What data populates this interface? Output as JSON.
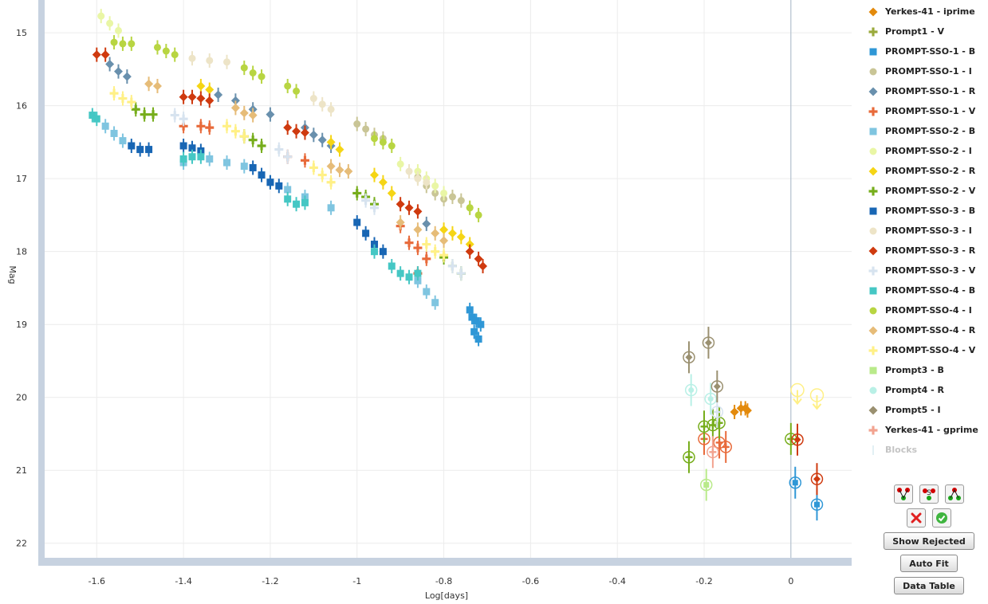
{
  "chart_data": {
    "type": "scatter",
    "xlabel": "Log[days]",
    "ylabel": "Mag",
    "xlim": [
      -1.72,
      0.14
    ],
    "ylim": [
      22.2,
      14.55
    ],
    "y_inverted": true,
    "x_ticks": [
      "-1.6",
      "-1.4",
      "-1.2",
      "-1",
      "-0.8",
      "-0.6",
      "-0.4",
      "-0.2",
      "0"
    ],
    "y_ticks": [
      "15",
      "16",
      "17",
      "18",
      "19",
      "20",
      "21",
      "22"
    ],
    "vertical_line_x": 0,
    "series": [
      {
        "name": "Yerkes-41 - iprime",
        "color": "#e38a0c",
        "marker": "diamond",
        "points": [
          [
            -0.13,
            20.2
          ],
          [
            -0.115,
            20.15
          ],
          [
            -0.105,
            20.15
          ],
          [
            -0.1,
            20.18
          ]
        ],
        "circled": true
      },
      {
        "name": "Prompt1 - V",
        "color": "#9aaa3c",
        "marker": "plus",
        "points": []
      },
      {
        "name": "PROMPT-SSO-1 - B",
        "color": "#2f97d6",
        "marker": "square",
        "points": [
          [
            -0.74,
            18.8
          ],
          [
            -0.735,
            18.9
          ],
          [
            -0.73,
            19.1
          ],
          [
            -0.725,
            18.95
          ],
          [
            -0.72,
            19.2
          ],
          [
            -0.715,
            19.0
          ]
        ],
        "circled_points": [
          [
            0.01,
            21.17
          ],
          [
            0.06,
            21.47
          ]
        ]
      },
      {
        "name": "PROMPT-SSO-1 - I",
        "color": "#c9c596",
        "marker": "circle",
        "points": [
          [
            -1.0,
            16.25
          ],
          [
            -0.98,
            16.32
          ],
          [
            -0.96,
            16.4
          ],
          [
            -0.94,
            16.45
          ],
          [
            -0.86,
            16.98
          ],
          [
            -0.84,
            17.1
          ],
          [
            -0.82,
            17.2
          ],
          [
            -0.8,
            17.28
          ],
          [
            -0.78,
            17.25
          ],
          [
            -0.76,
            17.3
          ],
          [
            -0.74,
            17.4
          ]
        ]
      },
      {
        "name": "PROMPT-SSO-1 - R",
        "color": "#6990ad",
        "marker": "diamond",
        "points": [
          [
            -1.57,
            15.43
          ],
          [
            -1.55,
            15.53
          ],
          [
            -1.53,
            15.6
          ],
          [
            -1.32,
            15.85
          ],
          [
            -1.28,
            15.93
          ],
          [
            -1.24,
            16.05
          ],
          [
            -1.2,
            16.12
          ],
          [
            -1.12,
            16.3
          ],
          [
            -1.1,
            16.4
          ],
          [
            -1.08,
            16.47
          ],
          [
            -1.06,
            16.55
          ],
          [
            -0.84,
            17.62
          ]
        ]
      },
      {
        "name": "PROMPT-SSO-1 - V",
        "color": "#e86a3a",
        "marker": "plus",
        "points": [
          [
            -1.4,
            16.28
          ],
          [
            -1.36,
            16.28
          ],
          [
            -1.34,
            16.3
          ],
          [
            -1.16,
            16.7
          ],
          [
            -1.12,
            16.75
          ],
          [
            -0.9,
            17.65
          ],
          [
            -0.88,
            17.88
          ],
          [
            -0.86,
            17.95
          ],
          [
            -0.84,
            18.1
          ],
          [
            -0.86,
            18.3
          ]
        ],
        "circled_points": [
          [
            -0.2,
            20.57
          ],
          [
            -0.165,
            20.62
          ],
          [
            -0.15,
            20.68
          ]
        ]
      },
      {
        "name": "PROMPT-SSO-2 - B",
        "color": "#7fc5e0",
        "marker": "square",
        "points": [
          [
            -1.58,
            16.28
          ],
          [
            -1.56,
            16.38
          ],
          [
            -1.54,
            16.48
          ],
          [
            -1.4,
            16.78
          ],
          [
            -1.34,
            16.73
          ],
          [
            -1.3,
            16.78
          ],
          [
            -1.26,
            16.83
          ],
          [
            -1.2,
            17.05
          ],
          [
            -1.16,
            17.15
          ],
          [
            -1.12,
            17.25
          ],
          [
            -1.06,
            17.4
          ],
          [
            -0.86,
            18.4
          ],
          [
            -0.84,
            18.55
          ],
          [
            -0.82,
            18.7
          ]
        ]
      },
      {
        "name": "PROMPT-SSO-2 - I",
        "color": "#e9f6a5",
        "marker": "circle",
        "points": [
          [
            -1.59,
            14.77
          ],
          [
            -1.57,
            14.87
          ],
          [
            -1.55,
            14.97
          ],
          [
            -0.9,
            16.8
          ],
          [
            -0.86,
            16.9
          ],
          [
            -0.84,
            17.0
          ],
          [
            -0.82,
            17.1
          ],
          [
            -0.8,
            17.2
          ]
        ]
      },
      {
        "name": "PROMPT-SSO-2 - R",
        "color": "#f5d515",
        "marker": "diamond",
        "points": [
          [
            -1.36,
            15.73
          ],
          [
            -1.34,
            15.78
          ],
          [
            -1.06,
            16.5
          ],
          [
            -1.04,
            16.6
          ],
          [
            -0.96,
            16.95
          ],
          [
            -0.94,
            17.05
          ],
          [
            -0.92,
            17.2
          ],
          [
            -0.8,
            17.7
          ],
          [
            -0.78,
            17.75
          ],
          [
            -0.76,
            17.8
          ],
          [
            -0.74,
            17.9
          ]
        ]
      },
      {
        "name": "PROMPT-SSO-2 - V",
        "color": "#76ad1b",
        "marker": "plus",
        "points": [
          [
            -1.51,
            16.05
          ],
          [
            -1.49,
            16.12
          ],
          [
            -1.47,
            16.12
          ],
          [
            -1.26,
            16.42
          ],
          [
            -1.24,
            16.47
          ],
          [
            -1.22,
            16.55
          ],
          [
            -1.0,
            17.2
          ],
          [
            -0.98,
            17.25
          ],
          [
            -0.96,
            17.35
          ],
          [
            -0.8,
            18.08
          ],
          [
            -0.78,
            18.2
          ],
          [
            -0.76,
            18.3
          ]
        ],
        "circled_points": [
          [
            -0.2,
            20.4
          ],
          [
            -0.18,
            20.38
          ],
          [
            -0.165,
            20.35
          ],
          [
            -0.235,
            20.82
          ],
          [
            0.0,
            20.57
          ]
        ]
      },
      {
        "name": "PROMPT-SSO-3 - B",
        "color": "#1866b4",
        "marker": "square",
        "points": [
          [
            -1.52,
            16.55
          ],
          [
            -1.5,
            16.6
          ],
          [
            -1.48,
            16.6
          ],
          [
            -1.4,
            16.55
          ],
          [
            -1.38,
            16.58
          ],
          [
            -1.36,
            16.62
          ],
          [
            -1.24,
            16.85
          ],
          [
            -1.22,
            16.95
          ],
          [
            -1.2,
            17.05
          ],
          [
            -1.18,
            17.1
          ],
          [
            -1.0,
            17.6
          ],
          [
            -0.98,
            17.75
          ],
          [
            -0.96,
            17.9
          ],
          [
            -0.94,
            18.0
          ]
        ]
      },
      {
        "name": "PROMPT-SSO-3 - I",
        "color": "#ede4c7",
        "marker": "circle",
        "points": [
          [
            -1.38,
            15.35
          ],
          [
            -1.34,
            15.38
          ],
          [
            -1.3,
            15.4
          ],
          [
            -1.1,
            15.9
          ],
          [
            -1.08,
            15.98
          ],
          [
            -1.06,
            16.05
          ],
          [
            -0.88,
            16.9
          ],
          [
            -0.86,
            17.0
          ],
          [
            -0.84,
            17.05
          ]
        ]
      },
      {
        "name": "PROMPT-SSO-3 - R",
        "color": "#cf3a0f",
        "marker": "diamond",
        "points": [
          [
            -1.6,
            15.3
          ],
          [
            -1.58,
            15.3
          ],
          [
            -1.4,
            15.88
          ],
          [
            -1.38,
            15.88
          ],
          [
            -1.36,
            15.9
          ],
          [
            -1.34,
            15.93
          ],
          [
            -1.16,
            16.3
          ],
          [
            -1.14,
            16.35
          ],
          [
            -1.12,
            16.37
          ],
          [
            -0.9,
            17.35
          ],
          [
            -0.88,
            17.4
          ],
          [
            -0.86,
            17.45
          ],
          [
            -0.74,
            18.0
          ],
          [
            -0.72,
            18.1
          ],
          [
            -0.71,
            18.2
          ]
        ],
        "circled_points": [
          [
            0.015,
            20.58
          ],
          [
            0.06,
            21.12
          ]
        ]
      },
      {
        "name": "PROMPT-SSO-3 - V",
        "color": "#d7e3ef",
        "marker": "plus",
        "points": [
          [
            -1.42,
            16.13
          ],
          [
            -1.4,
            16.18
          ],
          [
            -1.18,
            16.6
          ],
          [
            -1.16,
            16.7
          ],
          [
            -0.98,
            17.3
          ],
          [
            -0.96,
            17.4
          ],
          [
            -0.78,
            18.2
          ],
          [
            -0.76,
            18.3
          ]
        ],
        "circled_points": [
          [
            -0.17,
            20.2
          ]
        ]
      },
      {
        "name": "PROMPT-SSO-4 - B",
        "color": "#45c7c4",
        "marker": "square",
        "points": [
          [
            -1.61,
            16.13
          ],
          [
            -1.6,
            16.18
          ],
          [
            -1.4,
            16.73
          ],
          [
            -1.38,
            16.7
          ],
          [
            -1.36,
            16.7
          ],
          [
            -1.16,
            17.28
          ],
          [
            -1.14,
            17.35
          ],
          [
            -1.12,
            17.33
          ],
          [
            -0.96,
            18.0
          ],
          [
            -0.92,
            18.2
          ],
          [
            -0.9,
            18.3
          ],
          [
            -0.88,
            18.35
          ],
          [
            -0.86,
            18.3
          ]
        ]
      },
      {
        "name": "PROMPT-SSO-4 - I",
        "color": "#b8d542",
        "marker": "circle",
        "points": [
          [
            -1.56,
            15.13
          ],
          [
            -1.54,
            15.15
          ],
          [
            -1.52,
            15.15
          ],
          [
            -1.46,
            15.2
          ],
          [
            -1.44,
            15.25
          ],
          [
            -1.42,
            15.3
          ],
          [
            -1.26,
            15.48
          ],
          [
            -1.24,
            15.55
          ],
          [
            -1.22,
            15.6
          ],
          [
            -1.16,
            15.73
          ],
          [
            -1.14,
            15.8
          ],
          [
            -0.96,
            16.45
          ],
          [
            -0.94,
            16.5
          ],
          [
            -0.92,
            16.55
          ],
          [
            -0.74,
            17.4
          ],
          [
            -0.72,
            17.5
          ]
        ]
      },
      {
        "name": "PROMPT-SSO-4 - R",
        "color": "#e6bc78",
        "marker": "diamond",
        "points": [
          [
            -1.48,
            15.7
          ],
          [
            -1.46,
            15.73
          ],
          [
            -1.28,
            16.03
          ],
          [
            -1.26,
            16.1
          ],
          [
            -1.24,
            16.13
          ],
          [
            -1.06,
            16.83
          ],
          [
            -1.04,
            16.88
          ],
          [
            -1.02,
            16.9
          ],
          [
            -0.9,
            17.6
          ],
          [
            -0.86,
            17.7
          ],
          [
            -0.82,
            17.75
          ],
          [
            -0.8,
            17.85
          ]
        ]
      },
      {
        "name": "PROMPT-SSO-4 - V",
        "color": "#fff086",
        "marker": "plus",
        "points": [
          [
            -1.56,
            15.83
          ],
          [
            -1.54,
            15.9
          ],
          [
            -1.52,
            15.95
          ],
          [
            -1.3,
            16.28
          ],
          [
            -1.28,
            16.35
          ],
          [
            -1.26,
            16.42
          ],
          [
            -1.1,
            16.85
          ],
          [
            -1.08,
            16.95
          ],
          [
            -1.06,
            17.05
          ],
          [
            -0.84,
            17.9
          ],
          [
            -0.82,
            18.0
          ],
          [
            -0.8,
            18.05
          ]
        ],
        "limit_points": [
          [
            0.015,
            19.9
          ],
          [
            0.06,
            19.97
          ]
        ]
      },
      {
        "name": "Prompt3 - B",
        "color": "#b9ea8a",
        "marker": "square",
        "points": [],
        "circled_points": [
          [
            -0.195,
            21.2
          ]
        ]
      },
      {
        "name": "Prompt4 - R",
        "color": "#b9f0e6",
        "marker": "circle",
        "points": [],
        "circled_points": [
          [
            -0.23,
            19.9
          ],
          [
            -0.185,
            20.02
          ]
        ]
      },
      {
        "name": "Prompt5 - I",
        "color": "#9a9070",
        "marker": "diamond",
        "points": [],
        "circled_points": [
          [
            -0.235,
            19.45
          ],
          [
            -0.19,
            19.25
          ],
          [
            -0.17,
            19.85
          ]
        ]
      },
      {
        "name": "Yerkes-41 - gprime",
        "color": "#f2a390",
        "marker": "plus",
        "points": [],
        "circled_points": [
          [
            -0.18,
            20.75
          ]
        ]
      }
    ]
  },
  "legend_extra": {
    "label": "Blocks",
    "color": "#c6e0ea",
    "disabled": true
  },
  "buttons": {
    "show_rejected": "Show Rejected",
    "auto_fit": "Auto Fit",
    "data_table": "Data Table"
  }
}
